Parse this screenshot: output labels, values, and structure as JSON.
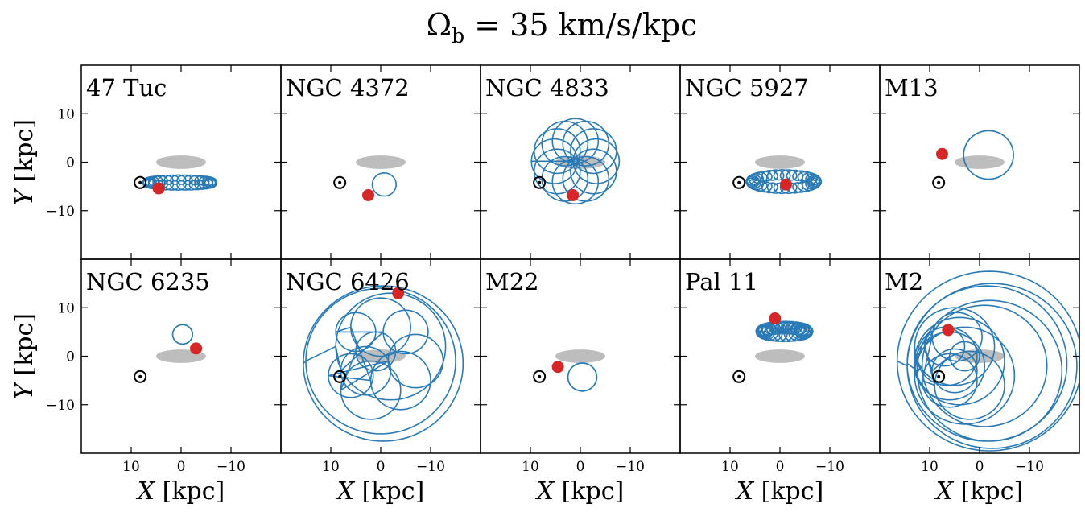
{
  "figure": {
    "title_prefix": "Ω",
    "title_sub": "b",
    "title_rest": " = 35 km/s/kpc"
  },
  "chart_data": {
    "type": "scatter",
    "grid": false,
    "xlabel_italic": "X",
    "xlabel_unit": " [kpc]",
    "ylabel_italic": "Y",
    "ylabel_unit": " [kpc]",
    "xlim": [
      20,
      -20
    ],
    "ylim": [
      -20,
      20
    ],
    "x_ticks": [
      10,
      0,
      -10
    ],
    "x_tick_labels": [
      "10",
      "0",
      "−10"
    ],
    "y_ticks": [
      10,
      0,
      -10
    ],
    "y_tick_labels": [
      "10",
      "0",
      "−10"
    ],
    "colors": {
      "orbit": "#2a7ab5",
      "current_position": "#d62728",
      "bar": "#bdbdbd",
      "sun": "#000000"
    },
    "sun_position": {
      "x": 8.2,
      "y": -4.2
    },
    "bar": {
      "x": 0,
      "y": 0,
      "half_length": 5,
      "half_width": 1.4
    },
    "panels": [
      {
        "name": "47 Tuc",
        "current_position": {
          "x": 4.5,
          "y": -5.4
        }
      },
      {
        "name": "NGC 4372",
        "current_position": {
          "x": 2.5,
          "y": -6.8
        }
      },
      {
        "name": "NGC 4833",
        "current_position": {
          "x": 1.5,
          "y": -6.8
        }
      },
      {
        "name": "NGC 5927",
        "current_position": {
          "x": -1.2,
          "y": -4.6
        }
      },
      {
        "name": "M13",
        "current_position": {
          "x": 7.5,
          "y": 1.7
        }
      },
      {
        "name": "NGC 6235",
        "current_position": {
          "x": -3.0,
          "y": 1.6
        }
      },
      {
        "name": "NGC 6426",
        "current_position": {
          "x": -3.5,
          "y": 13.0
        }
      },
      {
        "name": "M22",
        "current_position": {
          "x": 4.5,
          "y": -2.2
        }
      },
      {
        "name": "Pal 11",
        "current_position": {
          "x": 1.0,
          "y": 7.8
        }
      },
      {
        "name": "M2",
        "current_position": {
          "x": 6.3,
          "y": 5.4
        }
      }
    ]
  }
}
